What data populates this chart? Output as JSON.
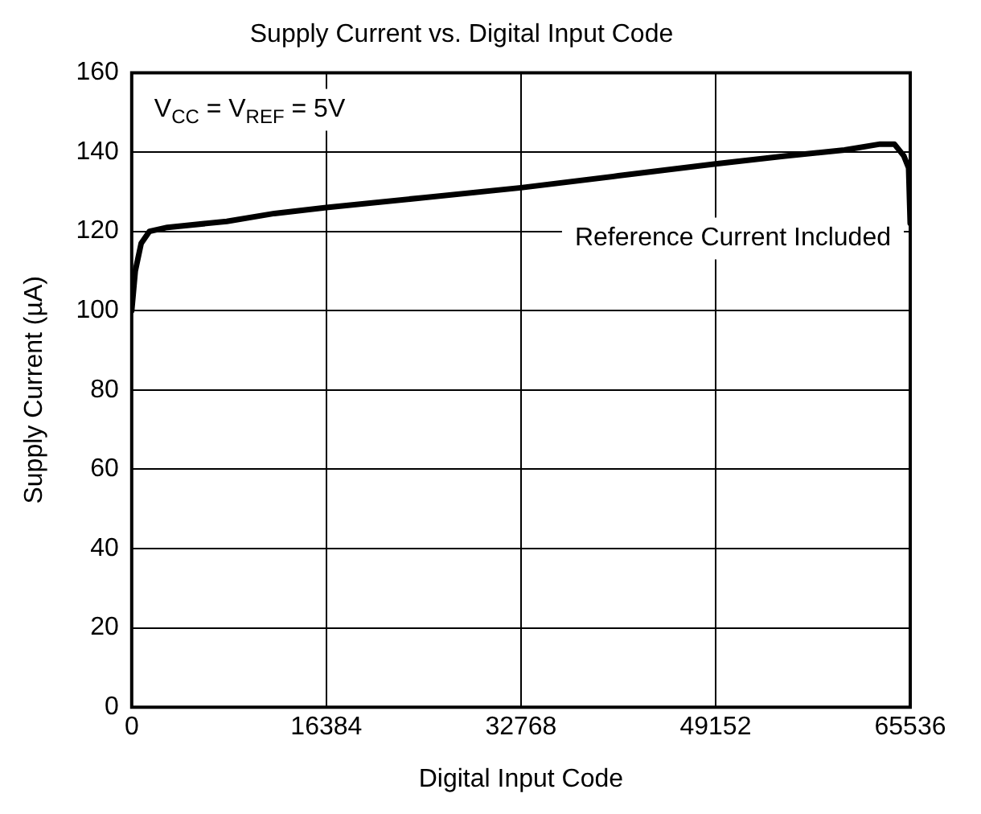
{
  "chart_data": {
    "type": "line",
    "title": "Supply Current vs. Digital Input Code",
    "xlabel": "Digital Input Code",
    "ylabel": "Supply Current (µA)",
    "x": [
      0,
      300,
      800,
      1500,
      3000,
      8000,
      12000,
      16384,
      24576,
      32768,
      40960,
      49152,
      55000,
      60000,
      63000,
      64200,
      65000,
      65400,
      65536
    ],
    "series": [
      {
        "color": "#000000",
        "values": [
          100,
          110,
          117,
          120,
          121,
          122.5,
          124.5,
          126,
          128.5,
          131,
          134,
          137,
          139,
          140.5,
          142,
          142,
          139,
          136,
          122
        ]
      }
    ],
    "xlim": [
      0,
      65536
    ],
    "xticks": [
      0,
      16384,
      32768,
      49152,
      65536
    ],
    "ylim": [
      0,
      160
    ],
    "yticks": [
      0,
      20,
      40,
      60,
      80,
      100,
      120,
      140,
      160
    ],
    "grid": true,
    "legend": false,
    "marker": "none",
    "line_style": "solid",
    "annotations": [
      "V$_{CC}$ = V$_{REF}$ = 5V",
      "Reference Current Included"
    ]
  }
}
